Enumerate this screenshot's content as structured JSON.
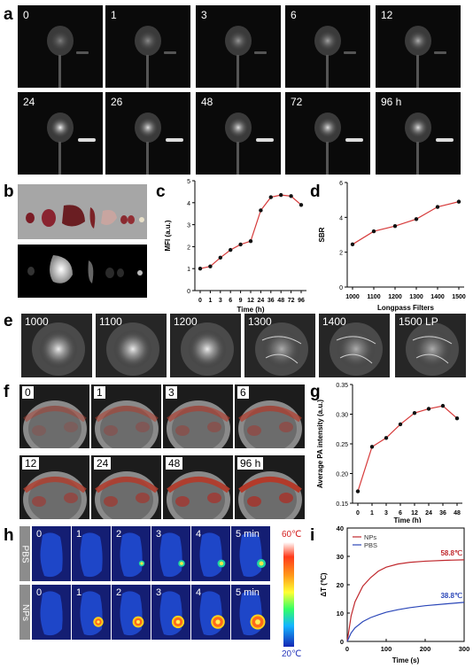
{
  "panels": {
    "a": {
      "letter": "a",
      "labels": [
        "0",
        "1",
        "3",
        "6",
        "12",
        "24",
        "26",
        "48",
        "72",
        "96 h"
      ]
    },
    "b": {
      "letter": "b"
    },
    "c": {
      "letter": "c"
    },
    "d": {
      "letter": "d"
    },
    "e": {
      "letter": "e",
      "labels": [
        "1000",
        "1100",
        "1200",
        "1300",
        "1400",
        "1500 LP"
      ]
    },
    "f": {
      "letter": "f",
      "labels": [
        "0",
        "1",
        "3",
        "6",
        "12",
        "24",
        "48",
        "96 h"
      ]
    },
    "g": {
      "letter": "g"
    },
    "h": {
      "letter": "h",
      "row_labels": [
        "PBS",
        "NPs"
      ],
      "labels": [
        "0",
        "1",
        "2",
        "3",
        "4",
        "5 min"
      ],
      "scale_max": "60℃",
      "scale_min": "20℃"
    },
    "i": {
      "letter": "i"
    }
  },
  "chart_data": [
    {
      "id": "c",
      "type": "line",
      "x": [
        "0",
        "1",
        "3",
        "6",
        "9",
        "12",
        "24",
        "36",
        "48",
        "72",
        "96"
      ],
      "values": [
        1.0,
        1.1,
        1.5,
        1.85,
        2.1,
        2.25,
        3.65,
        4.25,
        4.35,
        4.3,
        3.9
      ],
      "xlabel": "Time (h)",
      "ylabel": "MFI (a.u.)",
      "ylim": [
        0,
        5
      ],
      "yticks": [
        "0",
        "1",
        "2",
        "3",
        "4",
        "5"
      ],
      "line_color": "#d63a3a",
      "marker_color": "#111111"
    },
    {
      "id": "d",
      "type": "line",
      "x": [
        "1000",
        "1100",
        "1200",
        "1300",
        "1400",
        "1500"
      ],
      "values": [
        2.45,
        3.2,
        3.5,
        3.9,
        4.6,
        4.9
      ],
      "xlabel": "Longpass Filters",
      "ylabel": "SBR",
      "ylim": [
        0,
        6
      ],
      "yticks": [
        "0",
        "2",
        "4",
        "6"
      ],
      "line_color": "#d63a3a",
      "marker_color": "#111111"
    },
    {
      "id": "g",
      "type": "line",
      "x": [
        "0",
        "1",
        "3",
        "6",
        "12",
        "24",
        "36",
        "48"
      ],
      "values": [
        0.17,
        0.245,
        0.26,
        0.283,
        0.302,
        0.309,
        0.314,
        0.293
      ],
      "xlabel": "Time (h)",
      "ylabel": "Average PA intensity (a.u.)",
      "ylim": [
        0.15,
        0.35
      ],
      "yticks": [
        "0.15",
        "0.20",
        "0.25",
        "0.30",
        "0.35"
      ],
      "line_color": "#d63a3a",
      "marker_color": "#111111"
    },
    {
      "id": "i",
      "type": "line",
      "xlabel": "Time (s)",
      "ylabel": "ΔT (℃)",
      "xlim": [
        0,
        300
      ],
      "ylim": [
        0,
        40
      ],
      "xticks": [
        "0",
        "100",
        "200",
        "300"
      ],
      "yticks": [
        "0",
        "10",
        "20",
        "30",
        "40"
      ],
      "series": [
        {
          "name": "NPs",
          "color": "#c0282d",
          "x": [
            0,
            10,
            20,
            40,
            60,
            80,
            100,
            130,
            160,
            200,
            250,
            300
          ],
          "values": [
            0,
            9,
            14,
            19.5,
            22.5,
            24.8,
            26.2,
            27.3,
            27.9,
            28.3,
            28.6,
            28.8
          ],
          "end_label": "58.8℃"
        },
        {
          "name": "PBS",
          "color": "#2a46b8",
          "x": [
            0,
            10,
            20,
            40,
            60,
            80,
            100,
            130,
            160,
            200,
            250,
            300
          ],
          "values": [
            0,
            3,
            4.8,
            7,
            8.4,
            9.4,
            10.3,
            11.2,
            11.9,
            12.6,
            13.2,
            13.8
          ],
          "end_label": "38.8℃"
        }
      ]
    }
  ]
}
